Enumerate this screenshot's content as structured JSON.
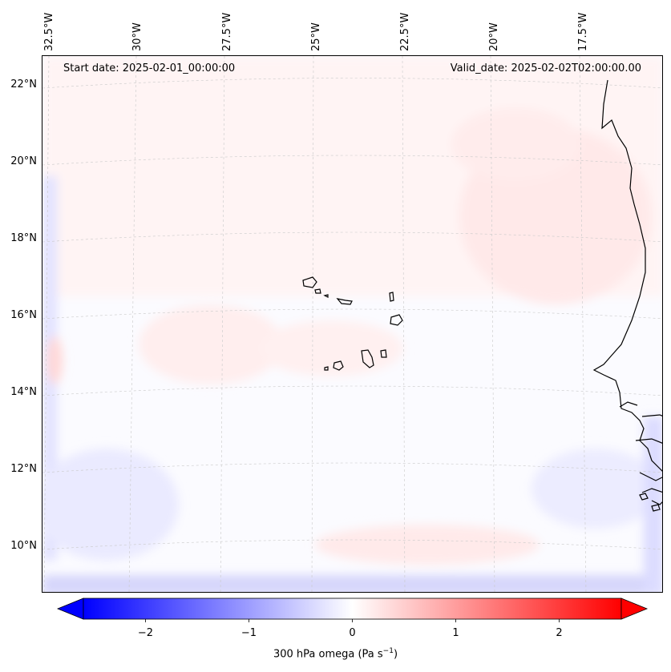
{
  "header": {
    "start_date": "Start date: 2025-02-01_00:00:00",
    "valid_date": "Valid_date: 2025-02-02T02:00:00.00"
  },
  "longitude_labels": [
    "32.5°W",
    "30°W",
    "27.5°W",
    "25°W",
    "22.5°W",
    "20°W",
    "17.5°W"
  ],
  "latitude_labels": [
    "22°N",
    "20°N",
    "18°N",
    "16°N",
    "14°N",
    "12°N",
    "10°N"
  ],
  "colorbar": {
    "label_prefix": "300 hPa omega (Pa s",
    "label_exp": "−1",
    "label_suffix": ")",
    "ticks": [
      "−2",
      "−1",
      "0",
      "1",
      "2"
    ],
    "tick_values": [
      -2,
      -1,
      0,
      1,
      2
    ],
    "range": [
      -2.6,
      2.6
    ],
    "low_color": "#0000ff",
    "mid_color": "#ffffff",
    "high_color": "#ff0000"
  },
  "chart_data": {
    "type": "heatmap",
    "title": "300 hPa omega",
    "variable": "300 hPa omega",
    "units": "Pa s^-1",
    "lon_range": [
      -33,
      -15.5
    ],
    "lat_range": [
      8.8,
      22.8
    ],
    "lon_ticks": [
      -32.5,
      -30,
      -27.5,
      -25,
      -22.5,
      -20,
      -17.5
    ],
    "lat_ticks": [
      22,
      20,
      18,
      16,
      14,
      12,
      10
    ],
    "colormap": "bwr",
    "value_range": [
      -2.6,
      2.6
    ],
    "field_summary": "weak values near 0 over most of domain; slight positive (sinking) over north/center, slight negative (rising) near southern and western edges"
  }
}
